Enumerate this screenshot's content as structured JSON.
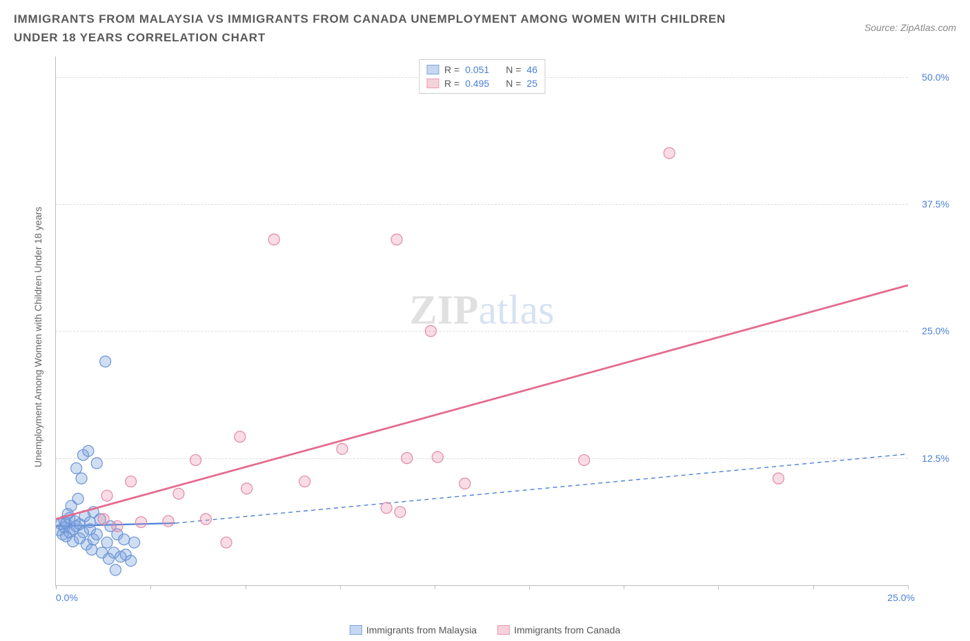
{
  "title": "IMMIGRANTS FROM MALAYSIA VS IMMIGRANTS FROM CANADA UNEMPLOYMENT AMONG WOMEN WITH CHILDREN UNDER 18 YEARS CORRELATION CHART",
  "source": "Source: ZipAtlas.com",
  "y_axis_label": "Unemployment Among Women with Children Under 18 years",
  "watermark_zip": "ZIP",
  "watermark_atlas": "atlas",
  "chart": {
    "type": "scatter",
    "xlim": [
      0,
      25
    ],
    "ylim": [
      0,
      52
    ],
    "x_ticks": [
      0,
      2.78,
      5.56,
      8.33,
      11.11,
      13.89,
      16.67,
      19.44,
      22.22,
      25
    ],
    "x_tick_labels": {
      "0": "0.0%",
      "25": "25.0%"
    },
    "y_ticks": [
      12.5,
      25.0,
      37.5,
      50.0
    ],
    "y_tick_labels": [
      "12.5%",
      "25.0%",
      "37.5%",
      "50.0%"
    ],
    "grid_color": "#dddddd",
    "axis_color": "#bbbbbb",
    "background_color": "#ffffff",
    "marker_radius": 8,
    "marker_stroke_width": 1.2,
    "series": [
      {
        "name": "Immigrants from Malaysia",
        "color_fill": "rgba(120,160,220,0.35)",
        "color_stroke": "#6a93d4",
        "swatch_fill": "#c5d7f2",
        "swatch_border": "#7ba3dd",
        "R": "0.051",
        "N": "46",
        "trend": {
          "x1": 0,
          "y1": 5.8,
          "x2": 3.5,
          "y2": 6.1,
          "dashed_to_x": 25,
          "dashed_to_y": 12.9,
          "color": "#4a7fd8",
          "width": 2.2
        },
        "points": [
          [
            0.1,
            5.4
          ],
          [
            0.15,
            6.0
          ],
          [
            0.2,
            5.0
          ],
          [
            0.25,
            5.7
          ],
          [
            0.25,
            6.3
          ],
          [
            0.3,
            4.8
          ],
          [
            0.3,
            6.1
          ],
          [
            0.35,
            7.0
          ],
          [
            0.4,
            5.2
          ],
          [
            0.4,
            6.6
          ],
          [
            0.45,
            7.8
          ],
          [
            0.5,
            5.5
          ],
          [
            0.5,
            4.3
          ],
          [
            0.55,
            6.3
          ],
          [
            0.6,
            11.5
          ],
          [
            0.6,
            5.8
          ],
          [
            0.65,
            8.5
          ],
          [
            0.7,
            4.6
          ],
          [
            0.7,
            6.0
          ],
          [
            0.75,
            10.5
          ],
          [
            0.8,
            12.8
          ],
          [
            0.8,
            5.2
          ],
          [
            0.85,
            6.8
          ],
          [
            0.9,
            4.0
          ],
          [
            0.95,
            13.2
          ],
          [
            1.0,
            5.5
          ],
          [
            1.0,
            6.2
          ],
          [
            1.05,
            3.5
          ],
          [
            1.1,
            7.2
          ],
          [
            1.1,
            4.5
          ],
          [
            1.2,
            12.0
          ],
          [
            1.2,
            5.0
          ],
          [
            1.3,
            6.5
          ],
          [
            1.35,
            3.2
          ],
          [
            1.45,
            22.0
          ],
          [
            1.5,
            4.2
          ],
          [
            1.55,
            2.6
          ],
          [
            1.6,
            5.8
          ],
          [
            1.7,
            3.2
          ],
          [
            1.75,
            1.5
          ],
          [
            1.8,
            5.0
          ],
          [
            1.9,
            2.8
          ],
          [
            2.0,
            4.5
          ],
          [
            2.05,
            3.0
          ],
          [
            2.2,
            2.4
          ],
          [
            2.3,
            4.2
          ]
        ]
      },
      {
        "name": "Immigrants from Canada",
        "color_fill": "rgba(235,140,170,0.30)",
        "color_stroke": "#e08aa5",
        "swatch_fill": "#f6d1dc",
        "swatch_border": "#e89ab2",
        "R": "0.495",
        "N": "25",
        "trend": {
          "x1": 0,
          "y1": 6.5,
          "x2": 25,
          "y2": 29.5,
          "color": "#e56b8e",
          "width": 2.8
        },
        "points": [
          [
            1.4,
            6.5
          ],
          [
            1.5,
            8.8
          ],
          [
            1.8,
            5.8
          ],
          [
            2.2,
            10.2
          ],
          [
            2.5,
            6.2
          ],
          [
            3.3,
            6.3
          ],
          [
            3.6,
            9.0
          ],
          [
            4.1,
            12.3
          ],
          [
            4.4,
            6.5
          ],
          [
            5.0,
            4.2
          ],
          [
            5.4,
            14.6
          ],
          [
            5.6,
            9.5
          ],
          [
            6.4,
            34.0
          ],
          [
            7.3,
            10.2
          ],
          [
            8.4,
            13.4
          ],
          [
            9.7,
            7.6
          ],
          [
            10.0,
            34.0
          ],
          [
            10.1,
            7.2
          ],
          [
            10.3,
            12.5
          ],
          [
            11.0,
            25.0
          ],
          [
            11.2,
            12.6
          ],
          [
            12.0,
            10.0
          ],
          [
            15.5,
            12.3
          ],
          [
            18.0,
            42.5
          ],
          [
            21.2,
            10.5
          ]
        ]
      }
    ]
  },
  "legend_top": [
    {
      "swatch_series": 0,
      "r_label": "R =",
      "n_label": "N ="
    },
    {
      "swatch_series": 1,
      "r_label": "R =",
      "n_label": "N ="
    }
  ]
}
